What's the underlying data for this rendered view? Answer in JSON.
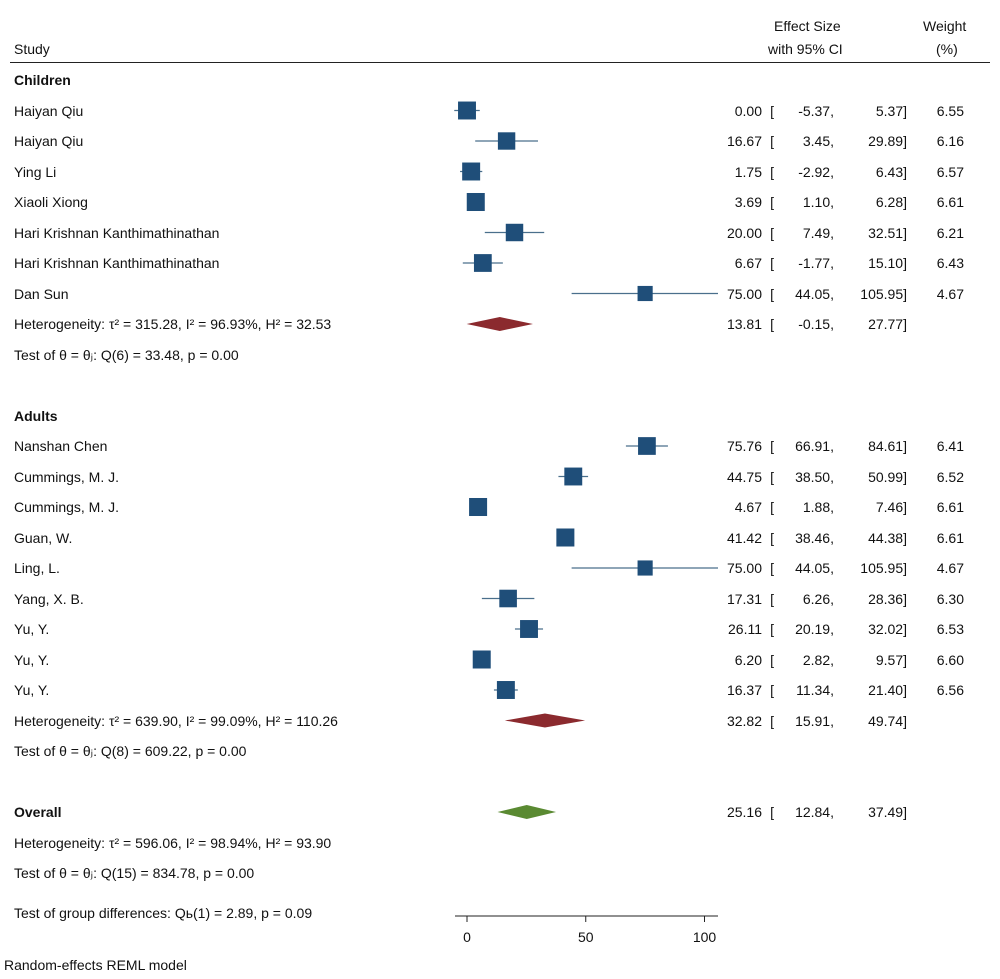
{
  "header": {
    "study": "Study",
    "effect_line1": "Effect Size",
    "effect_line2": "with 95% CI",
    "weight_line1": "Weight",
    "weight_line2": "(%)"
  },
  "footer": {
    "model": "Random-effects REML model"
  },
  "chart_data": {
    "type": "forest",
    "x_ticks": [
      0,
      50,
      100
    ],
    "xlim": [
      0,
      106
    ],
    "colors": {
      "study": "#1f4e79",
      "ci": "#4a6f8c",
      "subgroup": "#8b2a2e",
      "overall": "#5a8a32"
    },
    "rows": [
      {
        "kind": "group",
        "label": "Children"
      },
      {
        "kind": "study",
        "label": "Haiyan Qiu",
        "es": 0.0,
        "lo": -5.37,
        "hi": 5.37,
        "es_t": "0.00",
        "lo_t": "-5.37,",
        "hi_t": "5.37]",
        "w": 6.55,
        "w_t": "6.55"
      },
      {
        "kind": "study",
        "label": "Haiyan Qiu",
        "es": 16.67,
        "lo": 3.45,
        "hi": 29.89,
        "es_t": "16.67",
        "lo_t": "3.45,",
        "hi_t": "29.89]",
        "w": 6.16,
        "w_t": "6.16"
      },
      {
        "kind": "study",
        "label": "Ying Li",
        "es": 1.75,
        "lo": -2.92,
        "hi": 6.43,
        "es_t": "1.75",
        "lo_t": "-2.92,",
        "hi_t": "6.43]",
        "w": 6.57,
        "w_t": "6.57"
      },
      {
        "kind": "study",
        "label": "Xiaoli Xiong",
        "es": 3.69,
        "lo": 1.1,
        "hi": 6.28,
        "es_t": "3.69",
        "lo_t": "1.10,",
        "hi_t": "6.28]",
        "w": 6.61,
        "w_t": "6.61"
      },
      {
        "kind": "study",
        "label": "Hari Krishnan Kanthimathinathan",
        "es": 20.0,
        "lo": 7.49,
        "hi": 32.51,
        "es_t": "20.00",
        "lo_t": "7.49,",
        "hi_t": "32.51]",
        "w": 6.21,
        "w_t": "6.21"
      },
      {
        "kind": "study",
        "label": "Hari Krishnan Kanthimathinathan",
        "es": 6.67,
        "lo": -1.77,
        "hi": 15.1,
        "es_t": "6.67",
        "lo_t": "-1.77,",
        "hi_t": "15.10]",
        "w": 6.43,
        "w_t": "6.43"
      },
      {
        "kind": "study",
        "label": "Dan Sun",
        "es": 75.0,
        "lo": 44.05,
        "hi": 105.95,
        "es_t": "75.00",
        "lo_t": "44.05,",
        "hi_t": "105.95]",
        "w": 4.67,
        "w_t": "4.67"
      },
      {
        "kind": "subgroup",
        "label": "Heterogeneity: τ² = 315.28, I² = 96.93%, H² = 32.53",
        "es": 13.81,
        "lo": -0.15,
        "hi": 27.77,
        "es_t": "13.81",
        "lo_t": "-0.15,",
        "hi_t": "27.77]"
      },
      {
        "kind": "text",
        "label": "Test of θ = θⱼ: Q(6) = 33.48, p = 0.00"
      },
      {
        "kind": "blank"
      },
      {
        "kind": "group",
        "label": "Adults"
      },
      {
        "kind": "study",
        "label": "Nanshan Chen",
        "es": 75.76,
        "lo": 66.91,
        "hi": 84.61,
        "es_t": "75.76",
        "lo_t": "66.91,",
        "hi_t": "84.61]",
        "w": 6.41,
        "w_t": "6.41"
      },
      {
        "kind": "study",
        "label": "Cummings, M. J.",
        "es": 44.75,
        "lo": 38.5,
        "hi": 50.99,
        "es_t": "44.75",
        "lo_t": "38.50,",
        "hi_t": "50.99]",
        "w": 6.52,
        "w_t": "6.52"
      },
      {
        "kind": "study",
        "label": "Cummings, M. J.",
        "es": 4.67,
        "lo": 1.88,
        "hi": 7.46,
        "es_t": "4.67",
        "lo_t": "1.88,",
        "hi_t": "7.46]",
        "w": 6.61,
        "w_t": "6.61"
      },
      {
        "kind": "study",
        "label": "Guan, W.",
        "es": 41.42,
        "lo": 38.46,
        "hi": 44.38,
        "es_t": "41.42",
        "lo_t": "38.46,",
        "hi_t": "44.38]",
        "w": 6.61,
        "w_t": "6.61"
      },
      {
        "kind": "study",
        "label": "Ling, L.",
        "es": 75.0,
        "lo": 44.05,
        "hi": 105.95,
        "es_t": "75.00",
        "lo_t": "44.05,",
        "hi_t": "105.95]",
        "w": 4.67,
        "w_t": "4.67"
      },
      {
        "kind": "study",
        "label": "Yang, X. B.",
        "es": 17.31,
        "lo": 6.26,
        "hi": 28.36,
        "es_t": "17.31",
        "lo_t": "6.26,",
        "hi_t": "28.36]",
        "w": 6.3,
        "w_t": "6.30"
      },
      {
        "kind": "study",
        "label": "Yu, Y.",
        "es": 26.11,
        "lo": 20.19,
        "hi": 32.02,
        "es_t": "26.11",
        "lo_t": "20.19,",
        "hi_t": "32.02]",
        "w": 6.53,
        "w_t": "6.53"
      },
      {
        "kind": "study",
        "label": "Yu, Y.",
        "es": 6.2,
        "lo": 2.82,
        "hi": 9.57,
        "es_t": "6.20",
        "lo_t": "2.82,",
        "hi_t": "9.57]",
        "w": 6.6,
        "w_t": "6.60"
      },
      {
        "kind": "study",
        "label": "Yu, Y.",
        "es": 16.37,
        "lo": 11.34,
        "hi": 21.4,
        "es_t": "16.37",
        "lo_t": "11.34,",
        "hi_t": "21.40]",
        "w": 6.56,
        "w_t": "6.56"
      },
      {
        "kind": "subgroup",
        "label": "Heterogeneity: τ² = 639.90, I² = 99.09%, H² = 110.26",
        "es": 32.82,
        "lo": 15.91,
        "hi": 49.74,
        "es_t": "32.82",
        "lo_t": "15.91,",
        "hi_t": "49.74]"
      },
      {
        "kind": "text",
        "label": "Test of θ = θⱼ: Q(8) = 609.22, p = 0.00"
      },
      {
        "kind": "blank"
      },
      {
        "kind": "overall",
        "label": "Overall",
        "es": 25.16,
        "lo": 12.84,
        "hi": 37.49,
        "es_t": "25.16",
        "lo_t": "12.84,",
        "hi_t": "37.49]"
      },
      {
        "kind": "text",
        "label": "Heterogeneity: τ² = 596.06, I² = 98.94%, H² = 93.90"
      },
      {
        "kind": "text",
        "label": "Test of θ = θⱼ: Q(15) = 834.78, p = 0.00"
      },
      {
        "kind": "text",
        "label": "Test of group differences: Qь(1) = 2.89, p = 0.09"
      }
    ]
  }
}
